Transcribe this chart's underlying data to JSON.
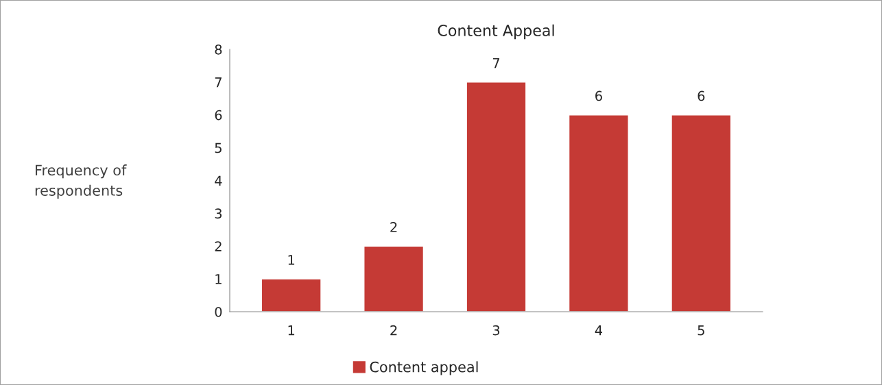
{
  "chart_data": {
    "type": "bar",
    "title": "Content Appeal",
    "annotations": [
      "Frequency of\nrespondents"
    ],
    "categories": [
      "1",
      "2",
      "3",
      "4",
      "5"
    ],
    "series": [
      {
        "name": "Content appeal",
        "color": "#c53a35",
        "values": [
          1,
          2,
          7,
          6,
          6
        ]
      }
    ],
    "ylim": [
      0,
      8
    ],
    "yticks": [
      0,
      1,
      2,
      3,
      4,
      5,
      6,
      7,
      8
    ],
    "data_labels": true,
    "legend": "bottom",
    "grid": false
  }
}
